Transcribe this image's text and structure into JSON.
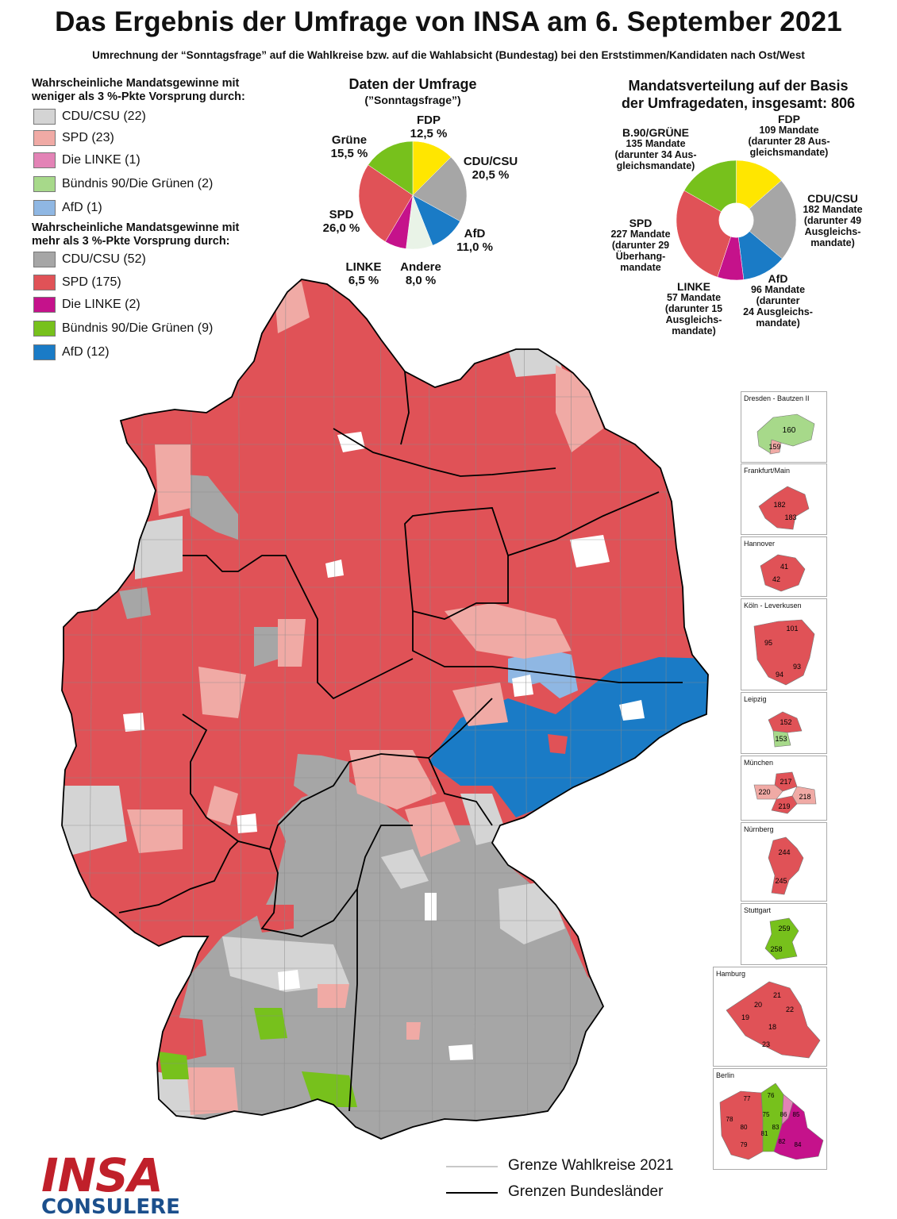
{
  "header": {
    "title": "Das Ergebnis der Umfrage von INSA am 6. September 2021",
    "subtitle": "Umrechnung der “Sonntagsfrage” auf die Wahlkreise bzw. auf die Wahlabsicht (Bundestag) bei den Erststimmen/Kandidaten nach Ost/West"
  },
  "legend": {
    "weak_heading_1": "Wahrscheinliche Mandatsgewinne mit",
    "weak_heading_2": "weniger als 3 %-Pkte Vorsprung durch:",
    "weak": [
      {
        "label": "CDU/CSU (22)",
        "color": "#d4d4d4"
      },
      {
        "label": "SPD (23)",
        "color": "#f0aaa5"
      },
      {
        "label": "Die LINKE (1)",
        "color": "#e383b6"
      },
      {
        "label": "Bündnis 90/Die Grünen (2)",
        "color": "#a7d98a"
      },
      {
        "label": "AfD (1)",
        "color": "#8fb7e3"
      }
    ],
    "strong_heading_1": "Wahrscheinliche Mandatsgewinne mit",
    "strong_heading_2": "mehr als 3 %-Pkte Vorsprung durch:",
    "strong": [
      {
        "label": "CDU/CSU (52)",
        "color": "#a6a6a6"
      },
      {
        "label": "SPD (175)",
        "color": "#e05257"
      },
      {
        "label": "Die LINKE (2)",
        "color": "#c5128b"
      },
      {
        "label": "Bündnis 90/Die Grünen (9)",
        "color": "#77c11c"
      },
      {
        "label": "AfD (12)",
        "color": "#1a7bc6"
      }
    ]
  },
  "poll": {
    "title_1": "Daten der Umfrage",
    "title_2": "(”Sonntagsfrage”)",
    "labels": {
      "fdp_name": "FDP",
      "fdp_val": "12,5 %",
      "cdu_name": "CDU/CSU",
      "cdu_val": "20,5 %",
      "afd_name": "AfD",
      "afd_val": "11,0 %",
      "andere_name": "Andere",
      "andere_val": "8,0 %",
      "linke_name": "LINKE",
      "linke_val": "6,5 %",
      "spd_name": "SPD",
      "spd_val": "26,0 %",
      "gruene_name": "Grüne",
      "gruene_val": "15,5 %"
    }
  },
  "seats": {
    "title_1": "Mandatsverteilung auf der Basis",
    "title_2": "der Umfragedaten, insgesamt: 806",
    "labels": {
      "gruene_1": "B.90/GRÜNE",
      "gruene_2": "135 Mandate",
      "gruene_3": "(darunter 34 Aus-",
      "gruene_4": "gleichsmandate)",
      "fdp_1": "FDP",
      "fdp_2": "109 Mandate",
      "fdp_3": "(darunter 28 Aus-",
      "fdp_4": "gleichsmandate)",
      "cdu_1": "CDU/CSU",
      "cdu_2": "182 Mandate",
      "cdu_3": "(darunter 49",
      "cdu_4": "Ausgleichs-",
      "cdu_5": "mandate)",
      "afd_1": "AfD",
      "afd_2": "96 Mandate",
      "afd_3": "(darunter",
      "afd_4": "24 Ausgleichs-",
      "afd_5": "mandate)",
      "linke_1": "LINKE",
      "linke_2": "57 Mandate",
      "linke_3": "(darunter 15",
      "linke_4": "Ausgleichs-",
      "linke_5": "mandate)",
      "spd_1": "SPD",
      "spd_2": "227 Mandate",
      "spd_3": "(darunter 29",
      "spd_4": "Überhang-",
      "spd_5": "mandate"
    }
  },
  "chart_data": [
    {
      "type": "pie",
      "title": "Daten der Umfrage",
      "subtitle": "(”Sonntagsfrage”)",
      "categories": [
        "FDP",
        "CDU/CSU",
        "AfD",
        "Andere",
        "LINKE",
        "SPD",
        "Grüne"
      ],
      "values": [
        12.5,
        20.5,
        11.0,
        8.0,
        6.5,
        26.0,
        15.5
      ],
      "colors": [
        "#ffe600",
        "#a6a6a6",
        "#1a7bc6",
        "#e9f3e7",
        "#c5128b",
        "#e05257",
        "#77c11c"
      ]
    },
    {
      "type": "pie",
      "title": "Mandatsverteilung auf der Basis der Umfragedaten, insgesamt: 806",
      "categories": [
        "FDP",
        "CDU/CSU",
        "AfD",
        "LINKE",
        "SPD",
        "B.90/GRÜNE"
      ],
      "values": [
        109,
        182,
        96,
        57,
        227,
        135
      ],
      "colors": [
        "#ffe600",
        "#a6a6a6",
        "#1a7bc6",
        "#c5128b",
        "#e05257",
        "#77c11c"
      ]
    }
  ],
  "insets": [
    {
      "title": "Dresden - Bautzen II",
      "nums": [
        "160",
        "159"
      ]
    },
    {
      "title": "Frankfurt/Main",
      "nums": [
        "182",
        "183"
      ]
    },
    {
      "title": "Hannover",
      "nums": [
        "41",
        "42"
      ]
    },
    {
      "title": "Köln - Leverkusen",
      "nums": [
        "101",
        "95",
        "93",
        "94"
      ]
    },
    {
      "title": "Leipzig",
      "nums": [
        "152",
        "153"
      ]
    },
    {
      "title": "München",
      "nums": [
        "217",
        "220",
        "218",
        "219"
      ]
    },
    {
      "title": "Nürnberg",
      "nums": [
        "244",
        "245"
      ]
    },
    {
      "title": "Stuttgart",
      "nums": [
        "259",
        "258"
      ]
    },
    {
      "title": "Hamburg",
      "nums": [
        "21",
        "20",
        "22",
        "19",
        "18",
        "23"
      ]
    },
    {
      "title": "Berlin",
      "nums": [
        "77",
        "76",
        "78",
        "75",
        "86",
        "85",
        "80",
        "83",
        "81",
        "82",
        "84",
        "79"
      ]
    }
  ],
  "map_legend": {
    "wk_label": "Grenze Wahlkreise 2021",
    "bl_label": "Grenzen Bundesländer"
  },
  "logo": {
    "top": "INSA",
    "bottom": "CONSULERE"
  }
}
